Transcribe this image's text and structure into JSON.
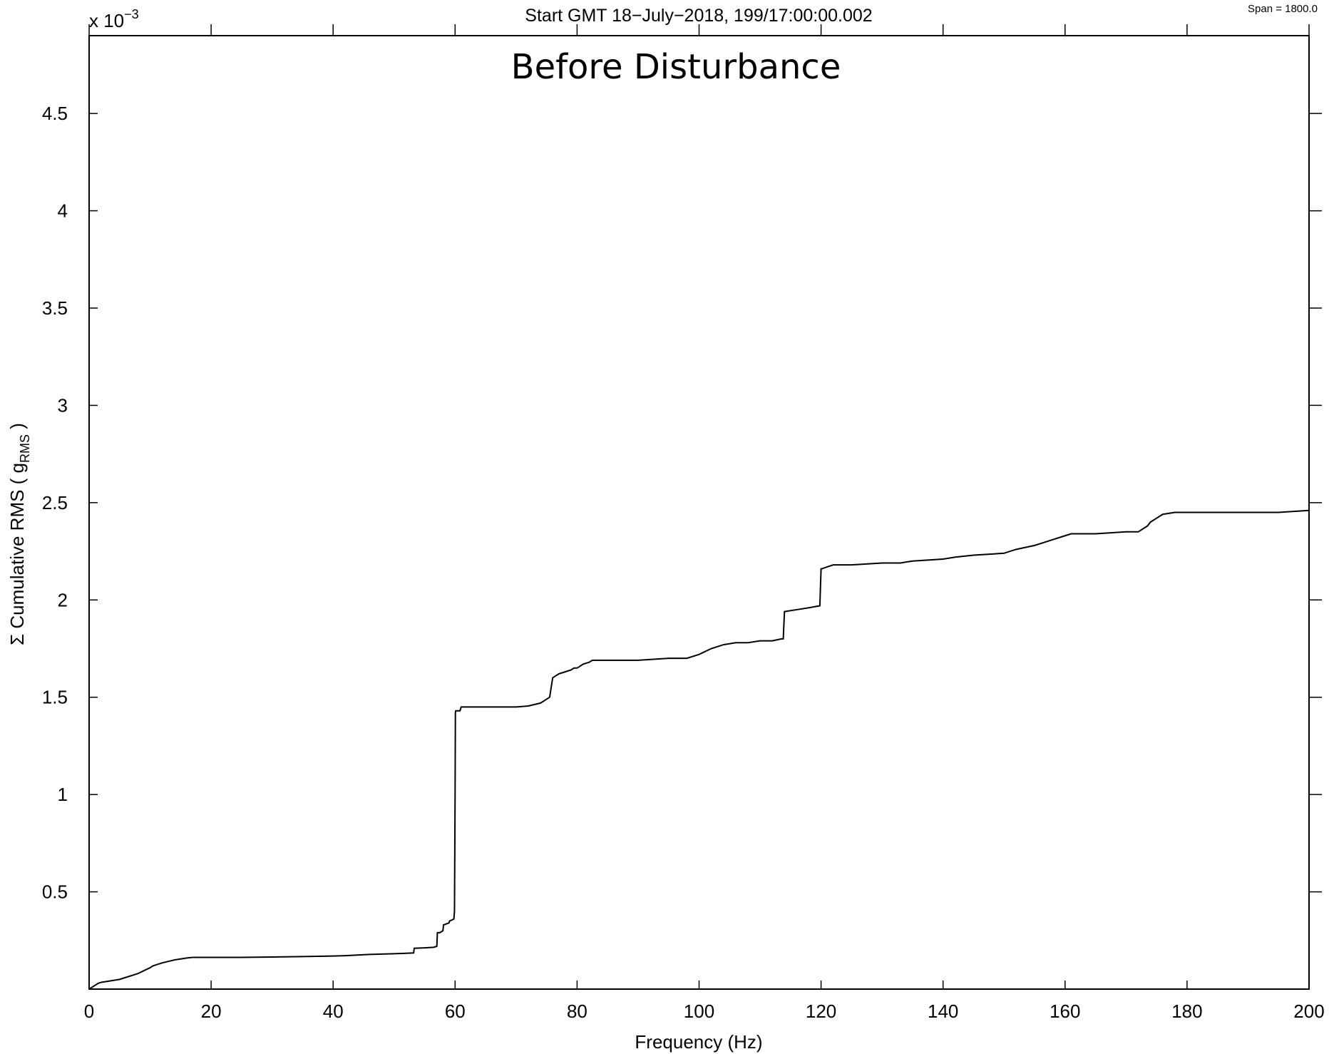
{
  "header": {
    "start_text": "Start GMT 18−July−2018, 199/17:00:00.002",
    "span_text": "Span = 1800.0"
  },
  "chart_data": {
    "type": "line",
    "title": "Before Disturbance",
    "xlabel": "Frequency (Hz)",
    "ylabel_prefix": "Σ Cumulative RMS ( g",
    "ylabel_subscript": "RMS",
    "ylabel_suffix": " )",
    "y_exponent_base": "x 10",
    "y_exponent_power": "−3",
    "xlim": [
      0,
      200
    ],
    "ylim": [
      0,
      0.0049
    ],
    "x_ticks": [
      0,
      20,
      40,
      60,
      80,
      100,
      120,
      140,
      160,
      180,
      200
    ],
    "x_tick_labels": [
      "0",
      "20",
      "40",
      "60",
      "80",
      "100",
      "120",
      "140",
      "160",
      "180",
      "200"
    ],
    "y_ticks": [
      0.0005,
      0.001,
      0.0015,
      0.002,
      0.0025,
      0.003,
      0.0035,
      0.004,
      0.0045
    ],
    "y_tick_labels": [
      "0.5",
      "1",
      "1.5",
      "2",
      "2.5",
      "3",
      "3.5",
      "4",
      "4.5"
    ],
    "grid": false,
    "line_color": "#000000",
    "series": [
      {
        "x": [
          0,
          0.5,
          1,
          1.5,
          2,
          3,
          4,
          5,
          6,
          7,
          8,
          9,
          10,
          10.5,
          11,
          12,
          14,
          16,
          17,
          18,
          20,
          25,
          30,
          35,
          40,
          42,
          44,
          46,
          48,
          50,
          52,
          53.2,
          53.3,
          55,
          56.5,
          57,
          57.1,
          57.5,
          58,
          58.1,
          59,
          59.1,
          59.8,
          59.9,
          60,
          60.05,
          60.1,
          60.8,
          60.9,
          61,
          62,
          65,
          70,
          72,
          74,
          75,
          75.5,
          76,
          76.5,
          77,
          78,
          79,
          79.5,
          80,
          80.5,
          81,
          82,
          82.5,
          83,
          85,
          90,
          95,
          98,
          100,
          102,
          104,
          106,
          108,
          110,
          112,
          113.5,
          113.8,
          114,
          116,
          118,
          119.8,
          120,
          120.1,
          121,
          122,
          125,
          130,
          133,
          135,
          140,
          142,
          145,
          150,
          152,
          155,
          157,
          158,
          160,
          161,
          165,
          170,
          172,
          173.5,
          174,
          175,
          176,
          178,
          180,
          185,
          190,
          195,
          200
        ],
        "y": [
          0,
          1e-05,
          2e-05,
          3e-05,
          3.5e-05,
          4e-05,
          4.5e-05,
          5e-05,
          6e-05,
          7e-05,
          8e-05,
          9.5e-05,
          0.00011,
          0.00012,
          0.000125,
          0.000135,
          0.00015,
          0.00016,
          0.000163,
          0.000163,
          0.000163,
          0.000163,
          0.000165,
          0.000167,
          0.00017,
          0.000172,
          0.000175,
          0.000178,
          0.00018,
          0.000182,
          0.000184,
          0.000186,
          0.00021,
          0.000212,
          0.000215,
          0.00022,
          0.00029,
          0.00029,
          0.0003,
          0.00033,
          0.00034,
          0.00035,
          0.00036,
          0.0004,
          0.001,
          0.00142,
          0.00143,
          0.00143,
          0.00144,
          0.00145,
          0.00145,
          0.00145,
          0.00145,
          0.001455,
          0.00147,
          0.00149,
          0.0015,
          0.0016,
          0.00161,
          0.00162,
          0.00163,
          0.00164,
          0.00165,
          0.00165,
          0.00166,
          0.00167,
          0.00168,
          0.00169,
          0.00169,
          0.00169,
          0.00169,
          0.0017,
          0.0017,
          0.00172,
          0.00175,
          0.00177,
          0.00178,
          0.00178,
          0.00179,
          0.00179,
          0.0018,
          0.0018,
          0.00194,
          0.00195,
          0.00196,
          0.00197,
          0.00216,
          0.00216,
          0.00217,
          0.00218,
          0.00218,
          0.00219,
          0.00219,
          0.0022,
          0.00221,
          0.00222,
          0.00223,
          0.00224,
          0.00226,
          0.00228,
          0.0023,
          0.00231,
          0.00233,
          0.00234,
          0.00234,
          0.00235,
          0.00235,
          0.00238,
          0.0024,
          0.00242,
          0.00244,
          0.00245,
          0.00245,
          0.00245,
          0.00245,
          0.00245,
          0.00246
        ]
      }
    ]
  }
}
